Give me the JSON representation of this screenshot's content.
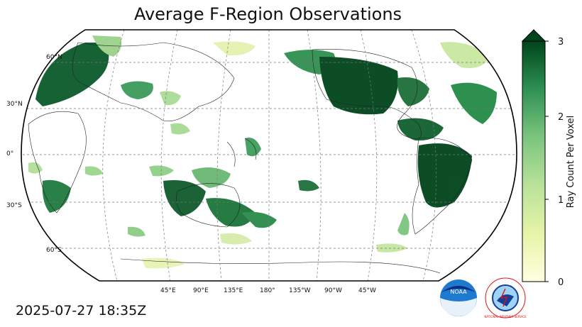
{
  "title": "Average F-Region Observations",
  "timestamp": "2025-07-27 18:35Z",
  "map": {
    "projection": "Robinson",
    "central_longitude": 180,
    "graticule": "dashed",
    "lat_labels": [
      "60°N",
      "30°N",
      "0°",
      "30°S",
      "60°S"
    ],
    "lon_labels": [
      "45°E",
      "90°E",
      "135°E",
      "180°",
      "135°W",
      "90°W",
      "45°W"
    ]
  },
  "colorbar": {
    "label": "Ray Count Per Voxel",
    "ticks": [
      "0",
      "1",
      "2",
      "3"
    ],
    "min": 0,
    "max": 3,
    "extend": "max",
    "low_color": "#ffffe0",
    "high_color": "#00441b"
  },
  "logos": {
    "noaa": {
      "text": "NOAA"
    },
    "nws": {
      "text": "NATIONAL WEATHER SERVICE"
    }
  }
}
